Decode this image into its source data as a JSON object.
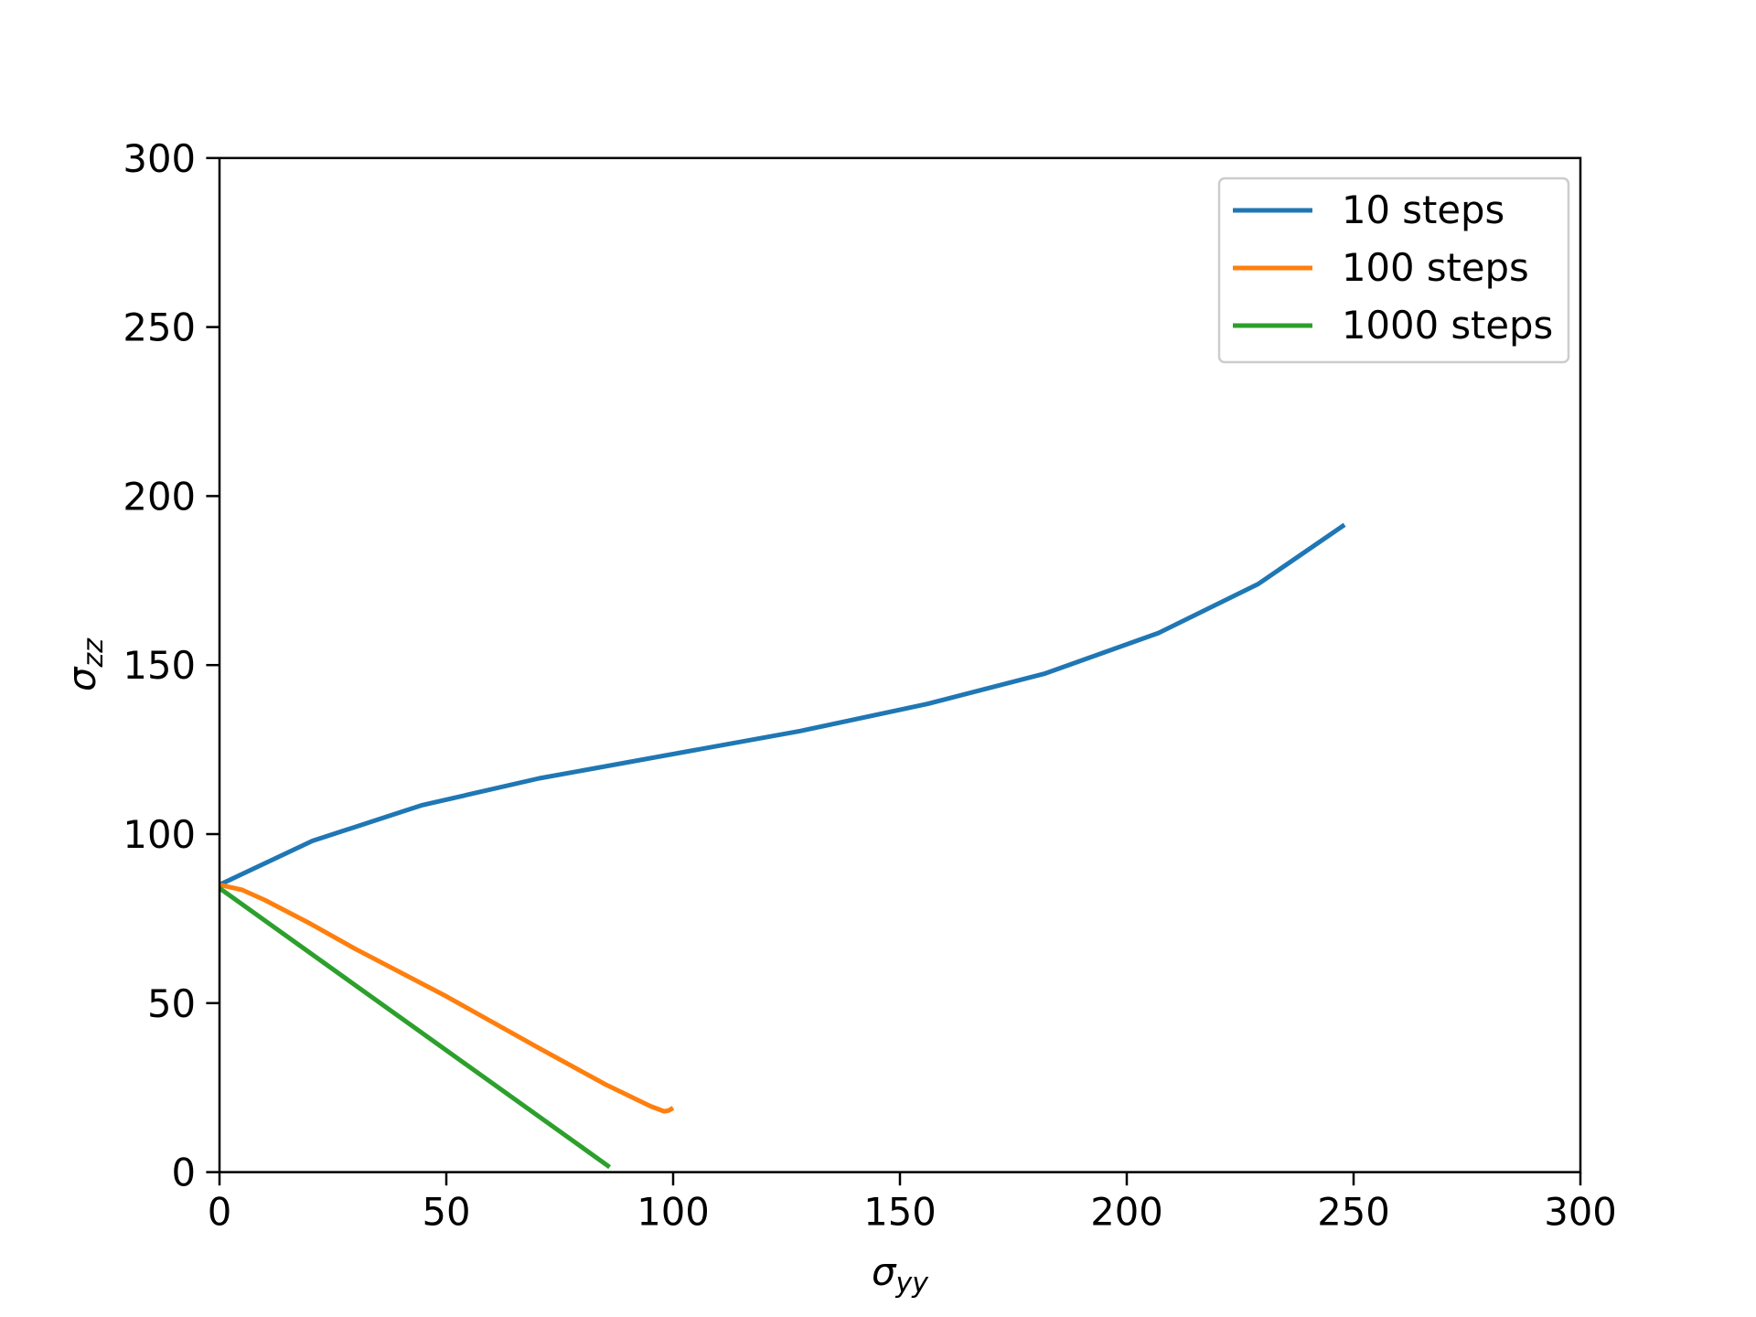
{
  "chart_data": {
    "type": "line",
    "title": "",
    "xlabel": "σyy",
    "ylabel": "σzz",
    "xlabel_main": "σ",
    "xlabel_sub": "yy",
    "ylabel_main": "σ",
    "ylabel_sub": "zz",
    "xlim": [
      0,
      300
    ],
    "ylim": [
      0,
      300
    ],
    "xticks": [
      "0",
      "50",
      "100",
      "150",
      "200",
      "250",
      "300"
    ],
    "yticks": [
      "0",
      "50",
      "100",
      "150",
      "200",
      "250",
      "300"
    ],
    "grid": false,
    "legend_position": "top-right",
    "series": [
      {
        "name": "10 steps",
        "color": "#1f77b4",
        "x": [
          0,
          20.5,
          44.5,
          70.5,
          128,
          156,
          182,
          207,
          229,
          248
        ],
        "y": [
          85,
          98,
          108.5,
          116.5,
          130.5,
          138.5,
          147.5,
          159.5,
          174,
          191.5
        ]
      },
      {
        "name": "100 steps",
        "color": "#ff7f0e",
        "x": [
          0,
          5,
          10,
          20,
          30,
          50,
          70,
          85,
          95,
          98,
          99,
          100
        ],
        "y": [
          85,
          83.5,
          80.5,
          73.5,
          66,
          52,
          37,
          26,
          19.5,
          18,
          18.2,
          19
        ]
      },
      {
        "name": "1000 steps",
        "color": "#2ca02c",
        "x": [
          0,
          86
        ],
        "y": [
          84,
          1.5
        ]
      }
    ]
  }
}
